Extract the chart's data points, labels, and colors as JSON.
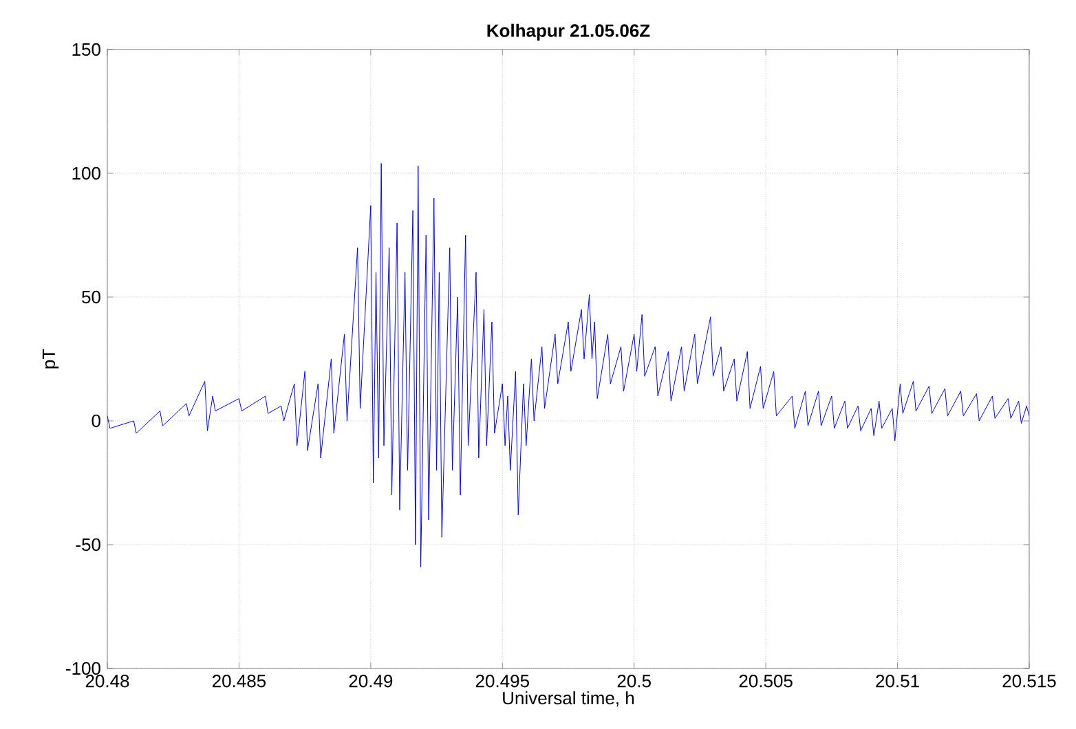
{
  "chart_data": {
    "type": "line",
    "title": "Kolhapur 21.05.06Z",
    "xlabel": "Universal time, h",
    "ylabel": "pT",
    "x": [
      20.48,
      20.4801,
      20.481,
      20.4811,
      20.482,
      20.4821,
      20.483,
      20.4831,
      20.4837,
      20.4838,
      20.484,
      20.4841,
      20.485,
      20.4851,
      20.486,
      20.4861,
      20.4866,
      20.4867,
      20.4871,
      20.4872,
      20.4875,
      20.4876,
      20.488,
      20.4881,
      20.4885,
      20.4886,
      20.489,
      20.4891,
      20.4895,
      20.4896,
      20.49,
      20.4901,
      20.4902,
      20.4903,
      20.4904,
      20.4905,
      20.4907,
      20.4908,
      20.491,
      20.4911,
      20.4913,
      20.4914,
      20.4916,
      20.4917,
      20.4918,
      20.4919,
      20.4921,
      20.4922,
      20.4924,
      20.4925,
      20.4926,
      20.4927,
      20.493,
      20.4931,
      20.4933,
      20.4934,
      20.4936,
      20.4937,
      20.494,
      20.4941,
      20.4943,
      20.4944,
      20.4946,
      20.4947,
      20.495,
      20.4951,
      20.4952,
      20.4953,
      20.4955,
      20.4956,
      20.4958,
      20.4959,
      20.4961,
      20.4962,
      20.4965,
      20.4966,
      20.497,
      20.4971,
      20.4975,
      20.4976,
      20.498,
      20.4981,
      20.4983,
      20.4984,
      20.4985,
      20.4986,
      20.499,
      20.4991,
      20.4995,
      20.4996,
      20.5,
      20.5001,
      20.5003,
      20.5004,
      20.5008,
      20.5009,
      20.5013,
      20.5014,
      20.5018,
      20.5019,
      20.5023,
      20.5024,
      20.5029,
      20.503,
      20.5033,
      20.5034,
      20.5038,
      20.5039,
      20.5043,
      20.5044,
      20.5048,
      20.5049,
      20.5053,
      20.5054,
      20.506,
      20.5061,
      20.5065,
      20.5066,
      20.507,
      20.5071,
      20.5075,
      20.5076,
      20.508,
      20.5081,
      20.5085,
      20.5086,
      20.509,
      20.5091,
      20.5093,
      20.5094,
      20.5098,
      20.5099,
      20.5101,
      20.5102,
      20.5106,
      20.5107,
      20.5112,
      20.5113,
      20.5118,
      20.5119,
      20.5124,
      20.5125,
      20.513,
      20.5131,
      20.5136,
      20.5137,
      20.5142,
      20.5143,
      20.5146,
      20.5147,
      20.5149,
      20.515
    ],
    "values": [
      2,
      -3,
      0,
      -5,
      4,
      -2,
      7,
      2,
      16,
      -4,
      10,
      4,
      9,
      4,
      10,
      3,
      6,
      0,
      15,
      -10,
      20,
      -12,
      15,
      -15,
      25,
      -5,
      35,
      0,
      70,
      5,
      87,
      -25,
      60,
      -15,
      104,
      -10,
      70,
      -30,
      80,
      -36,
      60,
      -20,
      85,
      -50,
      103,
      -59,
      75,
      -40,
      90,
      -20,
      60,
      -47,
      70,
      -20,
      50,
      -30,
      75,
      -10,
      60,
      -15,
      45,
      -10,
      40,
      -5,
      15,
      -10,
      10,
      -20,
      20,
      -38,
      15,
      -10,
      25,
      0,
      30,
      5,
      35,
      15,
      40,
      20,
      45,
      25,
      51,
      25,
      40,
      9,
      35,
      15,
      30,
      12,
      35,
      20,
      43,
      18,
      30,
      10,
      28,
      8,
      30,
      12,
      35,
      15,
      42,
      18,
      30,
      12,
      25,
      8,
      28,
      5,
      22,
      5,
      20,
      2,
      10,
      -3,
      12,
      -2,
      12,
      -2,
      10,
      -3,
      8,
      -3,
      6,
      -4,
      5,
      -6,
      8,
      -3,
      5,
      -8,
      15,
      3,
      16,
      4,
      14,
      3,
      13,
      2,
      12,
      2,
      11,
      0,
      10,
      1,
      9,
      1,
      8,
      -1,
      6,
      2
    ],
    "color": "#0000ff",
    "xlim": [
      20.48,
      20.515
    ],
    "ylim": [
      -100,
      150
    ],
    "xticks": [
      20.48,
      20.485,
      20.49,
      20.495,
      20.5,
      20.505,
      20.51,
      20.515
    ],
    "yticks": [
      -100,
      -50,
      0,
      50,
      100,
      150
    ],
    "grid": true
  }
}
